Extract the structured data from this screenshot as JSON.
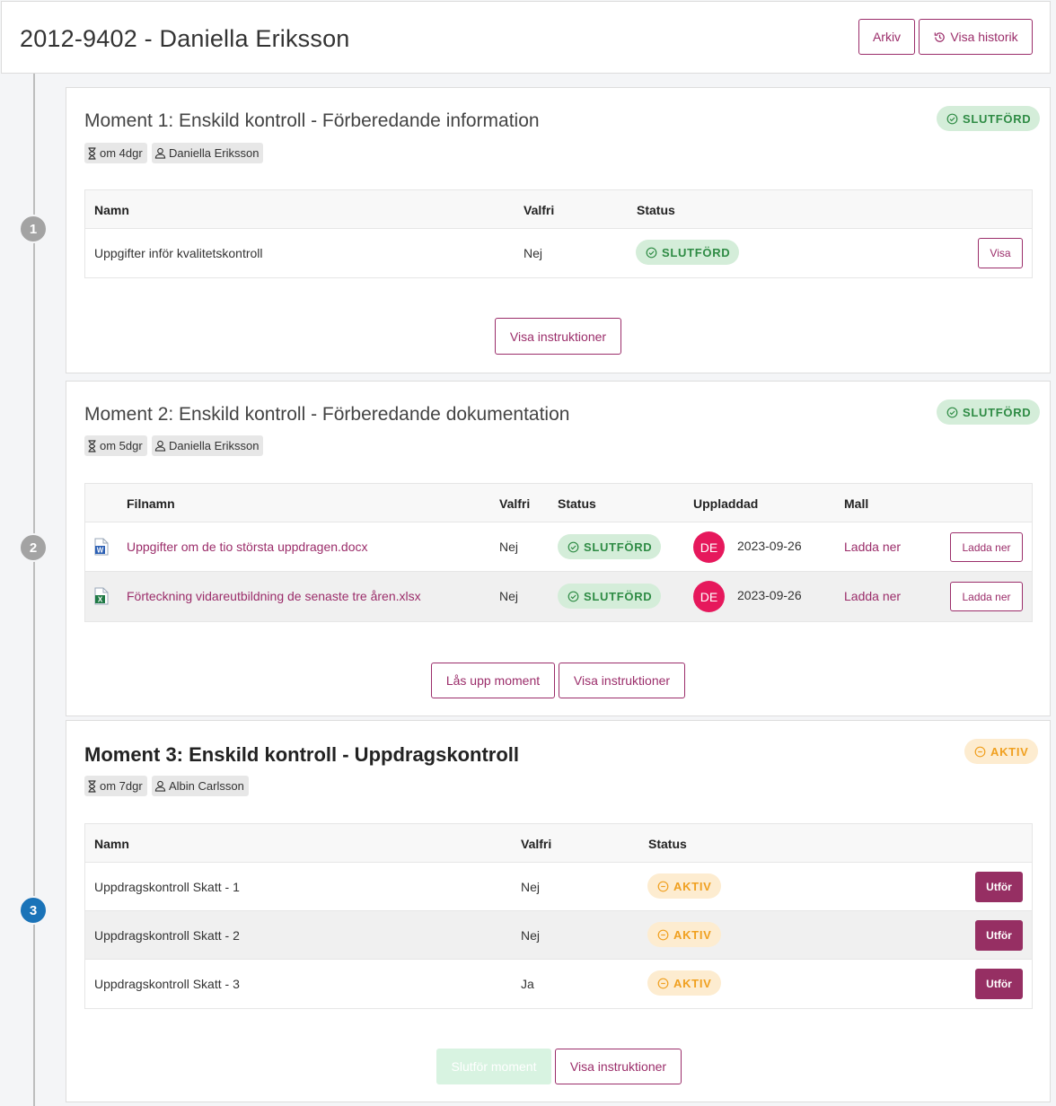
{
  "header": {
    "title": "2012-9402 - Daniella Eriksson",
    "archive_label": "Arkiv",
    "history_label": "Visa historik"
  },
  "timeline": {
    "steps": [
      "1",
      "2",
      "3"
    ]
  },
  "moment1": {
    "title": "Moment 1: Enskild kontroll - Förberedande information",
    "due": "om 4dgr",
    "assignee": "Daniella Eriksson",
    "status": "SLUTFÖRD",
    "columns": [
      "Namn",
      "Valfri",
      "Status"
    ],
    "rows": [
      {
        "name": "Uppgifter inför kvalitetskontroll",
        "optional": "Nej",
        "status": "SLUTFÖRD",
        "action": "Visa"
      }
    ],
    "instructions_label": "Visa instruktioner"
  },
  "moment2": {
    "title": "Moment 2: Enskild kontroll - Förberedande dokumentation",
    "due": "om 5dgr",
    "assignee": "Daniella Eriksson",
    "status": "SLUTFÖRD",
    "columns": [
      "Filnamn",
      "Valfri",
      "Status",
      "Uppladdad",
      "Mall"
    ],
    "rows": [
      {
        "file_icon": "word-file-icon",
        "filename": "Uppgifter om de tio största uppdragen.docx",
        "optional": "Nej",
        "status": "SLUTFÖRD",
        "avatar": "DE",
        "uploaded": "2023-09-26",
        "template": "Ladda ner",
        "action": "Ladda ner"
      },
      {
        "file_icon": "excel-file-icon",
        "filename": "Förteckning vidareutbildning de senaste tre åren.xlsx",
        "optional": "Nej",
        "status": "SLUTFÖRD",
        "avatar": "DE",
        "uploaded": "2023-09-26",
        "template": "Ladda ner",
        "action": "Ladda ner"
      }
    ],
    "unlock_label": "Lås upp moment",
    "instructions_label": "Visa instruktioner"
  },
  "moment3": {
    "title": "Moment 3: Enskild kontroll - Uppdragskontroll",
    "due": "om 7dgr",
    "assignee": "Albin Carlsson",
    "status": "AKTIV",
    "columns": [
      "Namn",
      "Valfri",
      "Status"
    ],
    "rows": [
      {
        "name": "Uppdragskontroll Skatt - 1",
        "optional": "Nej",
        "status": "AKTIV",
        "action": "Utför"
      },
      {
        "name": "Uppdragskontroll Skatt - 2",
        "optional": "Nej",
        "status": "AKTIV",
        "action": "Utför"
      },
      {
        "name": "Uppdragskontroll Skatt - 3",
        "optional": "Ja",
        "status": "AKTIV",
        "action": "Utför"
      }
    ],
    "complete_label": "Slutför moment",
    "instructions_label": "Visa instruktioner"
  },
  "colors": {
    "accent": "#9b2d6a",
    "success": "#2e8b44",
    "warning": "#f0a020",
    "step_active": "#1a73b8",
    "avatar": "#e6185c"
  }
}
